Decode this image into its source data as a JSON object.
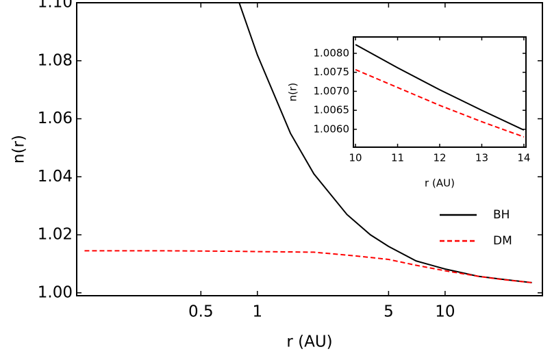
{
  "chart_data": [
    {
      "type": "line",
      "xlabel": "r (AU)",
      "ylabel": "n(r)",
      "log_x": true,
      "grid": false,
      "legend": "center right",
      "x": [
        0.12,
        0.3,
        0.5,
        0.8,
        1,
        1.5,
        2,
        3,
        4,
        5,
        7,
        10,
        15,
        20,
        29
      ],
      "series": [
        {
          "name": "BH",
          "color": "#000000",
          "dashed": false,
          "values": [
            null,
            null,
            null,
            1.1,
            1.082,
            1.055,
            1.041,
            1.027,
            1.02,
            1.016,
            1.011,
            1.0082,
            1.0057,
            1.0047,
            1.0035
          ]
        },
        {
          "name": "DM",
          "color": "#ff0000",
          "dashed": true,
          "values": [
            1.0145,
            1.0145,
            1.0144,
            1.0143,
            1.0142,
            1.0141,
            1.014,
            1.013,
            1.0122,
            1.0115,
            1.0095,
            1.0076,
            1.0057,
            1.0046,
            1.0035
          ]
        }
      ],
      "xlim": [
        0.109,
        33
      ],
      "xticks": [
        0.5,
        1,
        5,
        10
      ],
      "ylim": [
        0.999,
        1.1
      ],
      "yticks": [
        {
          "value": 1.0,
          "label": "1.00"
        },
        {
          "value": 1.02,
          "label": "1.02"
        },
        {
          "value": 1.04,
          "label": "1.04"
        },
        {
          "value": 1.06,
          "label": "1.06"
        },
        {
          "value": 1.08,
          "label": "1.08"
        },
        {
          "value": 1.1,
          "label": "1.10"
        }
      ]
    },
    {
      "type": "line",
      "xlabel": "r (AU)",
      "ylabel": "n(r)",
      "log_x": false,
      "grid": false,
      "x": [
        10,
        11,
        12,
        13,
        14
      ],
      "series": [
        {
          "color": "#000000",
          "dashed": false,
          "values": [
            1.00823,
            1.00762,
            1.00704,
            1.0065,
            1.00598
          ]
        },
        {
          "color": "#ff0000",
          "dashed": true,
          "values": [
            1.00757,
            1.0071,
            1.00663,
            1.0062,
            1.0058
          ]
        }
      ],
      "xlim": [
        9.95,
        14.05
      ],
      "xticks": [
        10,
        11,
        12,
        13,
        14
      ],
      "ylim": [
        1.00553,
        1.00843
      ],
      "yticks": [
        {
          "value": 1.006,
          "label": "1.0060"
        },
        {
          "value": 1.0065,
          "label": "1.0065"
        },
        {
          "value": 1.007,
          "label": "1.0070"
        },
        {
          "value": 1.0075,
          "label": "1.0075"
        },
        {
          "value": 1.008,
          "label": "1.0080"
        }
      ]
    }
  ]
}
